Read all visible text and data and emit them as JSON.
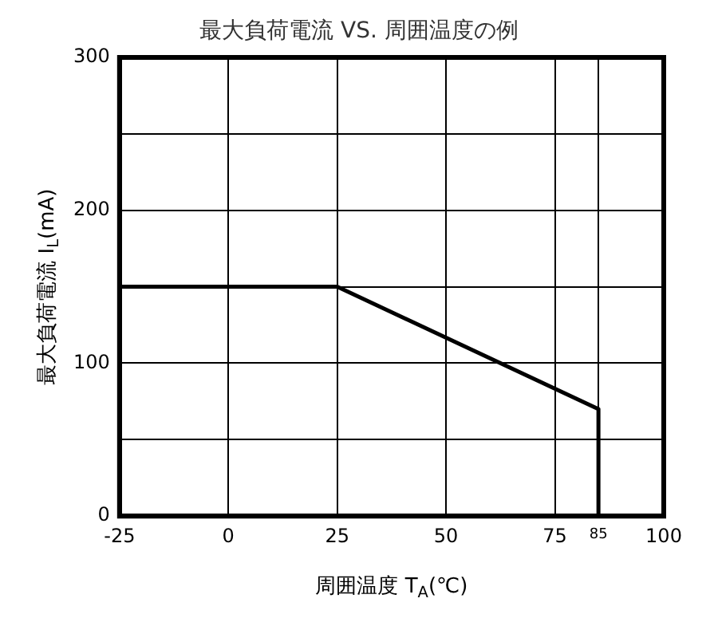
{
  "chart_data": {
    "type": "line",
    "title": "最大負荷電流 VS. 周囲温度の例",
    "xlabel": "周囲温度 T$_{A}$(℃)",
    "ylabel": "最大負荷電流 I$_{L}$(mA)",
    "x": [
      -25,
      25,
      85,
      85
    ],
    "series": [
      {
        "color": "#000000",
        "values": [
          150,
          150,
          70,
          0
        ]
      }
    ],
    "xlim": [
      -25,
      100
    ],
    "xticks": [
      -25,
      0,
      25,
      50,
      75,
      {
        "value": 85,
        "label": "85"
      },
      100
    ],
    "ylim": [
      0,
      300
    ],
    "yticks": [
      0,
      {
        "value": 50,
        "label": null
      },
      100,
      {
        "value": 150,
        "label": null
      },
      200,
      {
        "value": 250,
        "label": null
      },
      300
    ],
    "grid": true,
    "legend": false,
    "marker": "none",
    "line_style": "solid"
  }
}
